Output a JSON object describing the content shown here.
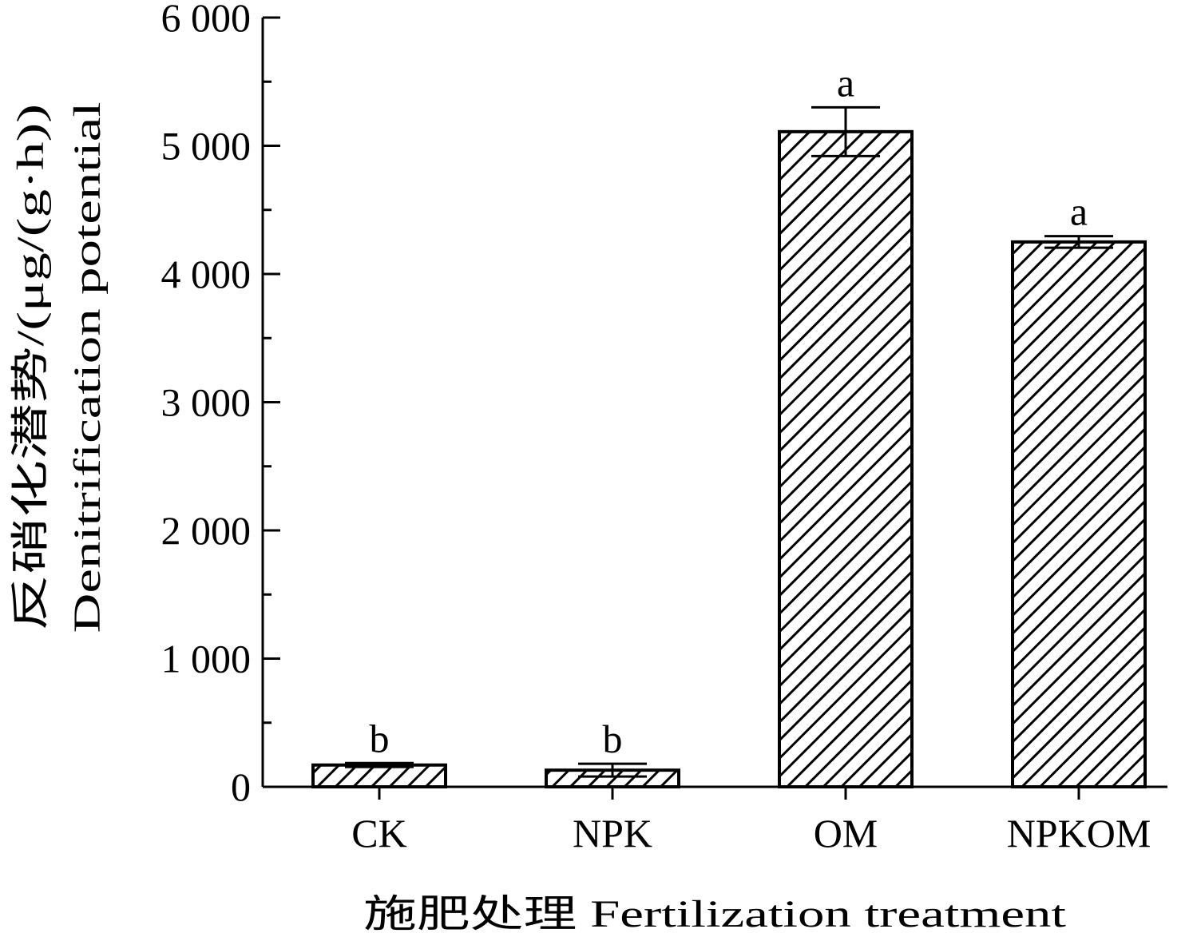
{
  "chart_data": {
    "type": "bar",
    "categories": [
      "CK",
      "NPK",
      "OM",
      "NPKOM"
    ],
    "values": [
      170,
      130,
      5110,
      4250
    ],
    "errors": [
      15,
      50,
      190,
      45
    ],
    "significance": [
      "b",
      "b",
      "a",
      "a"
    ],
    "xlabel": "施肥处理 Fertilization treatment",
    "ylabel_cn": "反硝化潜势/(μg/(g·h))",
    "ylabel_en": "Denitrification potential",
    "ylim": [
      0,
      6000
    ],
    "yticks": [
      0,
      1000,
      2000,
      3000,
      4000,
      5000,
      6000
    ],
    "ytick_labels": [
      "0",
      "1 000",
      "2 000",
      "3 000",
      "4 000",
      "5 000",
      "6 000"
    ],
    "bar_fill": "diagonal hatch",
    "colors": {
      "stroke": "#000000",
      "background": "#ffffff"
    },
    "grid": false,
    "legend": "none"
  }
}
